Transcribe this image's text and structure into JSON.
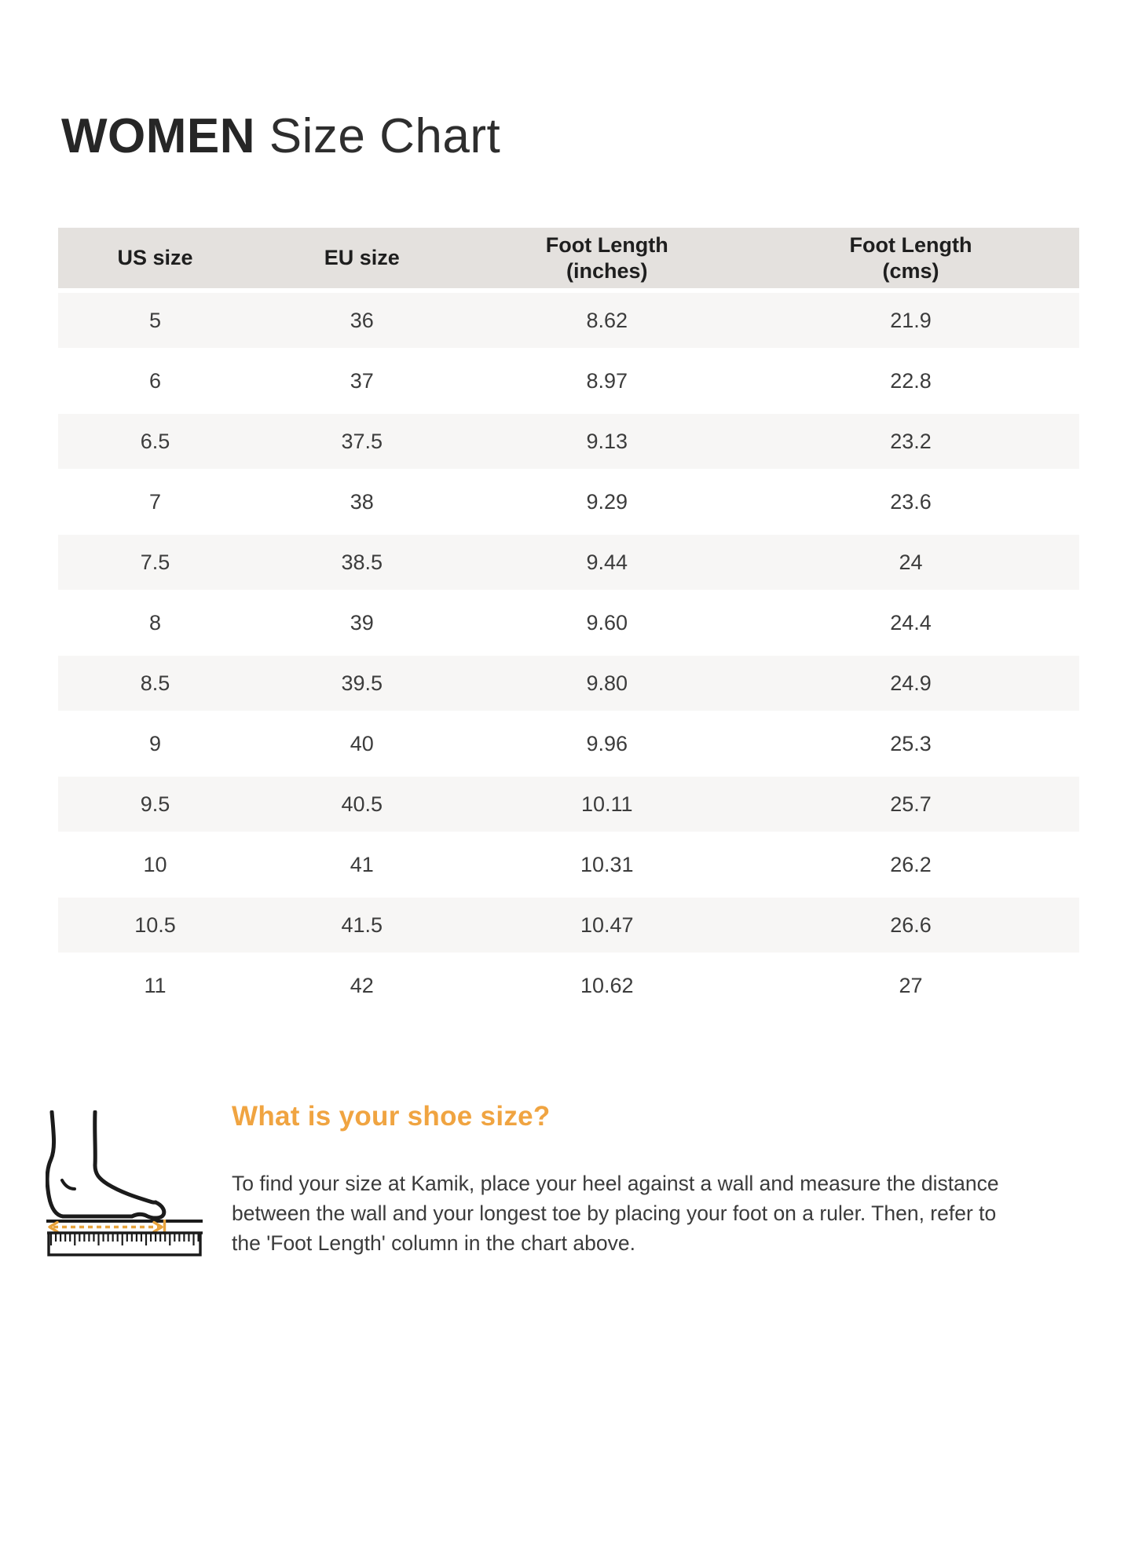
{
  "title": {
    "bold": "WOMEN",
    "regular": " Size Chart"
  },
  "table": {
    "headers": [
      "US size",
      "EU size",
      "Foot Length\n(inches)",
      "Foot Length\n(cms)"
    ],
    "rows": [
      [
        "5",
        "36",
        "8.62",
        "21.9"
      ],
      [
        "6",
        "37",
        "8.97",
        "22.8"
      ],
      [
        "6.5",
        "37.5",
        "9.13",
        "23.2"
      ],
      [
        "7",
        "38",
        "9.29",
        "23.6"
      ],
      [
        "7.5",
        "38.5",
        "9.44",
        "24"
      ],
      [
        "8",
        "39",
        "9.60",
        "24.4"
      ],
      [
        "8.5",
        "39.5",
        "9.80",
        "24.9"
      ],
      [
        "9",
        "40",
        "9.96",
        "25.3"
      ],
      [
        "9.5",
        "40.5",
        "10.11",
        "25.7"
      ],
      [
        "10",
        "41",
        "10.31",
        "26.2"
      ],
      [
        "10.5",
        "41.5",
        "10.47",
        "26.6"
      ],
      [
        "11",
        "42",
        "10.62",
        "27"
      ]
    ],
    "header_bg": "#e4e1de",
    "stripe_bg": "#f7f6f5"
  },
  "guide": {
    "heading": "What is your shoe size?",
    "heading_color": "#F0A441",
    "paragraph": "To find your size at Kamik, place your heel against a wall and measure the distance\nbetween the wall and your longest toe by placing your foot on a ruler. Then, refer to\nthe 'Foot Length' column in the chart above.",
    "icon": "foot-measure-icon"
  }
}
